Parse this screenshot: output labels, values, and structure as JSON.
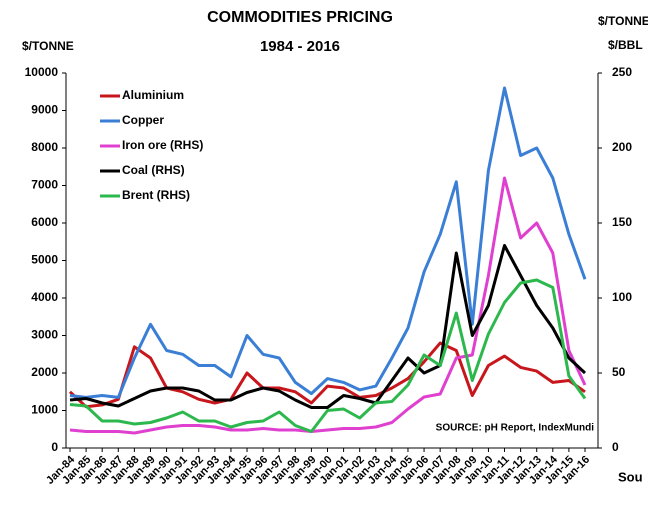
{
  "chart_data": {
    "type": "line",
    "title": "COMMODITIES PRICING",
    "subtitle": "1984 - 2016",
    "y_label": "$/TONNE",
    "y2_label": [
      "$/TONNE,",
      "$/BBL"
    ],
    "source": "SOURCE: pH Report, IndexMundi",
    "side_text": "Sou",
    "categories": [
      "Jan-84",
      "Jan-85",
      "Jan-86",
      "Jan-87",
      "Jan-88",
      "Jan-89",
      "Jan-90",
      "Jan-91",
      "Jan-92",
      "Jan-93",
      "Jan-94",
      "Jan-95",
      "Jan-96",
      "Jan-97",
      "Jan-98",
      "Jan-99",
      "Jan-00",
      "Jan-01",
      "Jan-02",
      "Jan-03",
      "Jan-04",
      "Jan-05",
      "Jan-06",
      "Jan-07",
      "Jan-08",
      "Jan-09",
      "Jan-10",
      "Jan-11",
      "Jan-12",
      "Jan-13",
      "Jan-14",
      "Jan-15",
      "Jan-16"
    ],
    "series": [
      {
        "name": "Aluminium",
        "color": "#c8161d",
        "values": [
          1500,
          1100,
          1150,
          1300,
          2700,
          2400,
          1600,
          1500,
          1300,
          1200,
          1300,
          2000,
          1600,
          1600,
          1500,
          1200,
          1650,
          1600,
          1350,
          1400,
          1600,
          1850,
          2300,
          2800,
          2600,
          1400,
          2200,
          2450,
          2150,
          2050,
          1750,
          1800,
          1500
        ]
      },
      {
        "name": "Copper",
        "color": "#3a7fd5",
        "values": [
          1400,
          1350,
          1400,
          1350,
          2400,
          3300,
          2600,
          2500,
          2200,
          2200,
          1900,
          3000,
          2500,
          2400,
          1750,
          1450,
          1850,
          1750,
          1550,
          1650,
          2400,
          3200,
          4700,
          5700,
          7100,
          3300,
          7400,
          9600,
          7800,
          8000,
          7200,
          5700,
          4500
        ]
      },
      {
        "name": "Iron ore (RHS)",
        "color": "#e040d0",
        "axis": "y2",
        "values": [
          12,
          11,
          11,
          11,
          10,
          12,
          14,
          15,
          15,
          14,
          12,
          12,
          13,
          12,
          12,
          11,
          12,
          13,
          13,
          14,
          17,
          26,
          34,
          36,
          60,
          62,
          115,
          180,
          140,
          150,
          130,
          65,
          42
        ]
      },
      {
        "name": "Coal (RHS)",
        "color": "#000000",
        "axis": "y2",
        "values": [
          32,
          33,
          30,
          28,
          33,
          38,
          40,
          40,
          38,
          32,
          32,
          37,
          40,
          38,
          32,
          27,
          27,
          35,
          33,
          30,
          45,
          60,
          50,
          55,
          130,
          75,
          95,
          135,
          115,
          95,
          80,
          60,
          50
        ]
      },
      {
        "name": "Brent (RHS)",
        "color": "#2db84d",
        "axis": "y2",
        "values": [
          29,
          28,
          18,
          18,
          16,
          17,
          20,
          24,
          18,
          18,
          14,
          17,
          18,
          24,
          15,
          11,
          25,
          26,
          20,
          30,
          31,
          42,
          62,
          55,
          90,
          45,
          76,
          97,
          110,
          112,
          107,
          48,
          33
        ]
      }
    ],
    "ylim": [
      0,
      10000
    ],
    "yticks": [
      0,
      1000,
      2000,
      3000,
      4000,
      5000,
      6000,
      7000,
      8000,
      9000,
      10000
    ],
    "y2lim": [
      0,
      250
    ],
    "y2ticks": [
      0,
      50,
      100,
      150,
      200,
      250
    ],
    "legend": "top-left"
  }
}
